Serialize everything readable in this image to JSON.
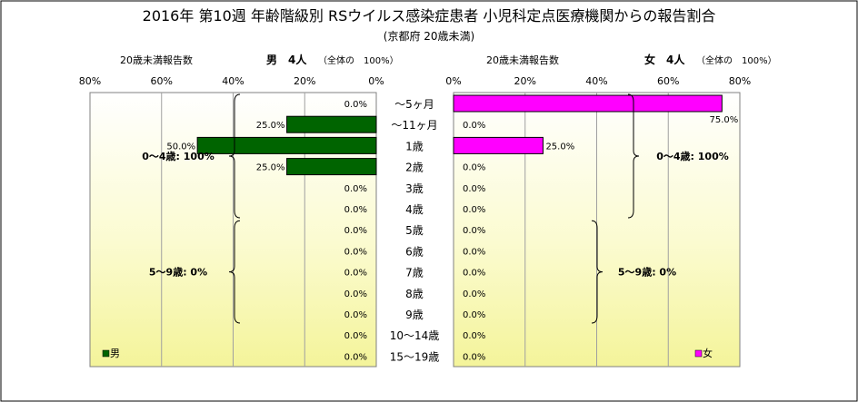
{
  "chart_data": {
    "type": "bar",
    "title": "2016年 第10週 年齢階級別 RSウイルス感染症患者 小児科定点医療機関からの報告割合",
    "subtitle": "(京都府 20歳未満)",
    "categories": [
      "～5ヶ月",
      "～11ヶ月",
      "1歳",
      "2歳",
      "3歳",
      "4歳",
      "5歳",
      "6歳",
      "7歳",
      "8歳",
      "9歳",
      "10～14歳",
      "15～19歳"
    ],
    "xlim": [
      0,
      80
    ],
    "ticks": [
      0,
      20,
      40,
      60,
      80
    ],
    "tick_labels": [
      "0%",
      "20%",
      "40%",
      "60%",
      "80%"
    ],
    "grid": true,
    "series": [
      {
        "name": "男",
        "side": "left",
        "color": "#006400",
        "header_label": "20歳未満報告数",
        "header_total": "男　4人",
        "header_note": "（全体の　100%）",
        "values": [
          0,
          25,
          50,
          25,
          0,
          0,
          0,
          0,
          0,
          0,
          0,
          0,
          0
        ],
        "value_labels": [
          "0.0%",
          "25.0%",
          "50.0%",
          "25.0%",
          "0.0%",
          "0.0%",
          "0.0%",
          "0.0%",
          "0.0%",
          "0.0%",
          "0.0%",
          "0.0%",
          "0.0%"
        ],
        "groups": [
          {
            "label": "0～4歳: 100%",
            "from": 0,
            "to": 5
          },
          {
            "label": "5～9歳: 0%",
            "from": 6,
            "to": 10
          }
        ],
        "legend": "男"
      },
      {
        "name": "女",
        "side": "right",
        "color": "#ff00ff",
        "header_label": "20歳未満報告数",
        "header_total": "女　4人",
        "header_note": "（全体の　100%）",
        "values": [
          75,
          0,
          25,
          0,
          0,
          0,
          0,
          0,
          0,
          0,
          0,
          0,
          0
        ],
        "value_labels": [
          "75.0%",
          "0.0%",
          "25.0%",
          "0.0%",
          "0.0%",
          "0.0%",
          "0.0%",
          "0.0%",
          "0.0%",
          "0.0%",
          "0.0%",
          "0.0%",
          "0.0%"
        ],
        "groups": [
          {
            "label": "0～4歳: 100%",
            "from": 0,
            "to": 5
          },
          {
            "label": "5～9歳: 0%",
            "from": 6,
            "to": 10
          }
        ],
        "legend": "女"
      }
    ]
  }
}
